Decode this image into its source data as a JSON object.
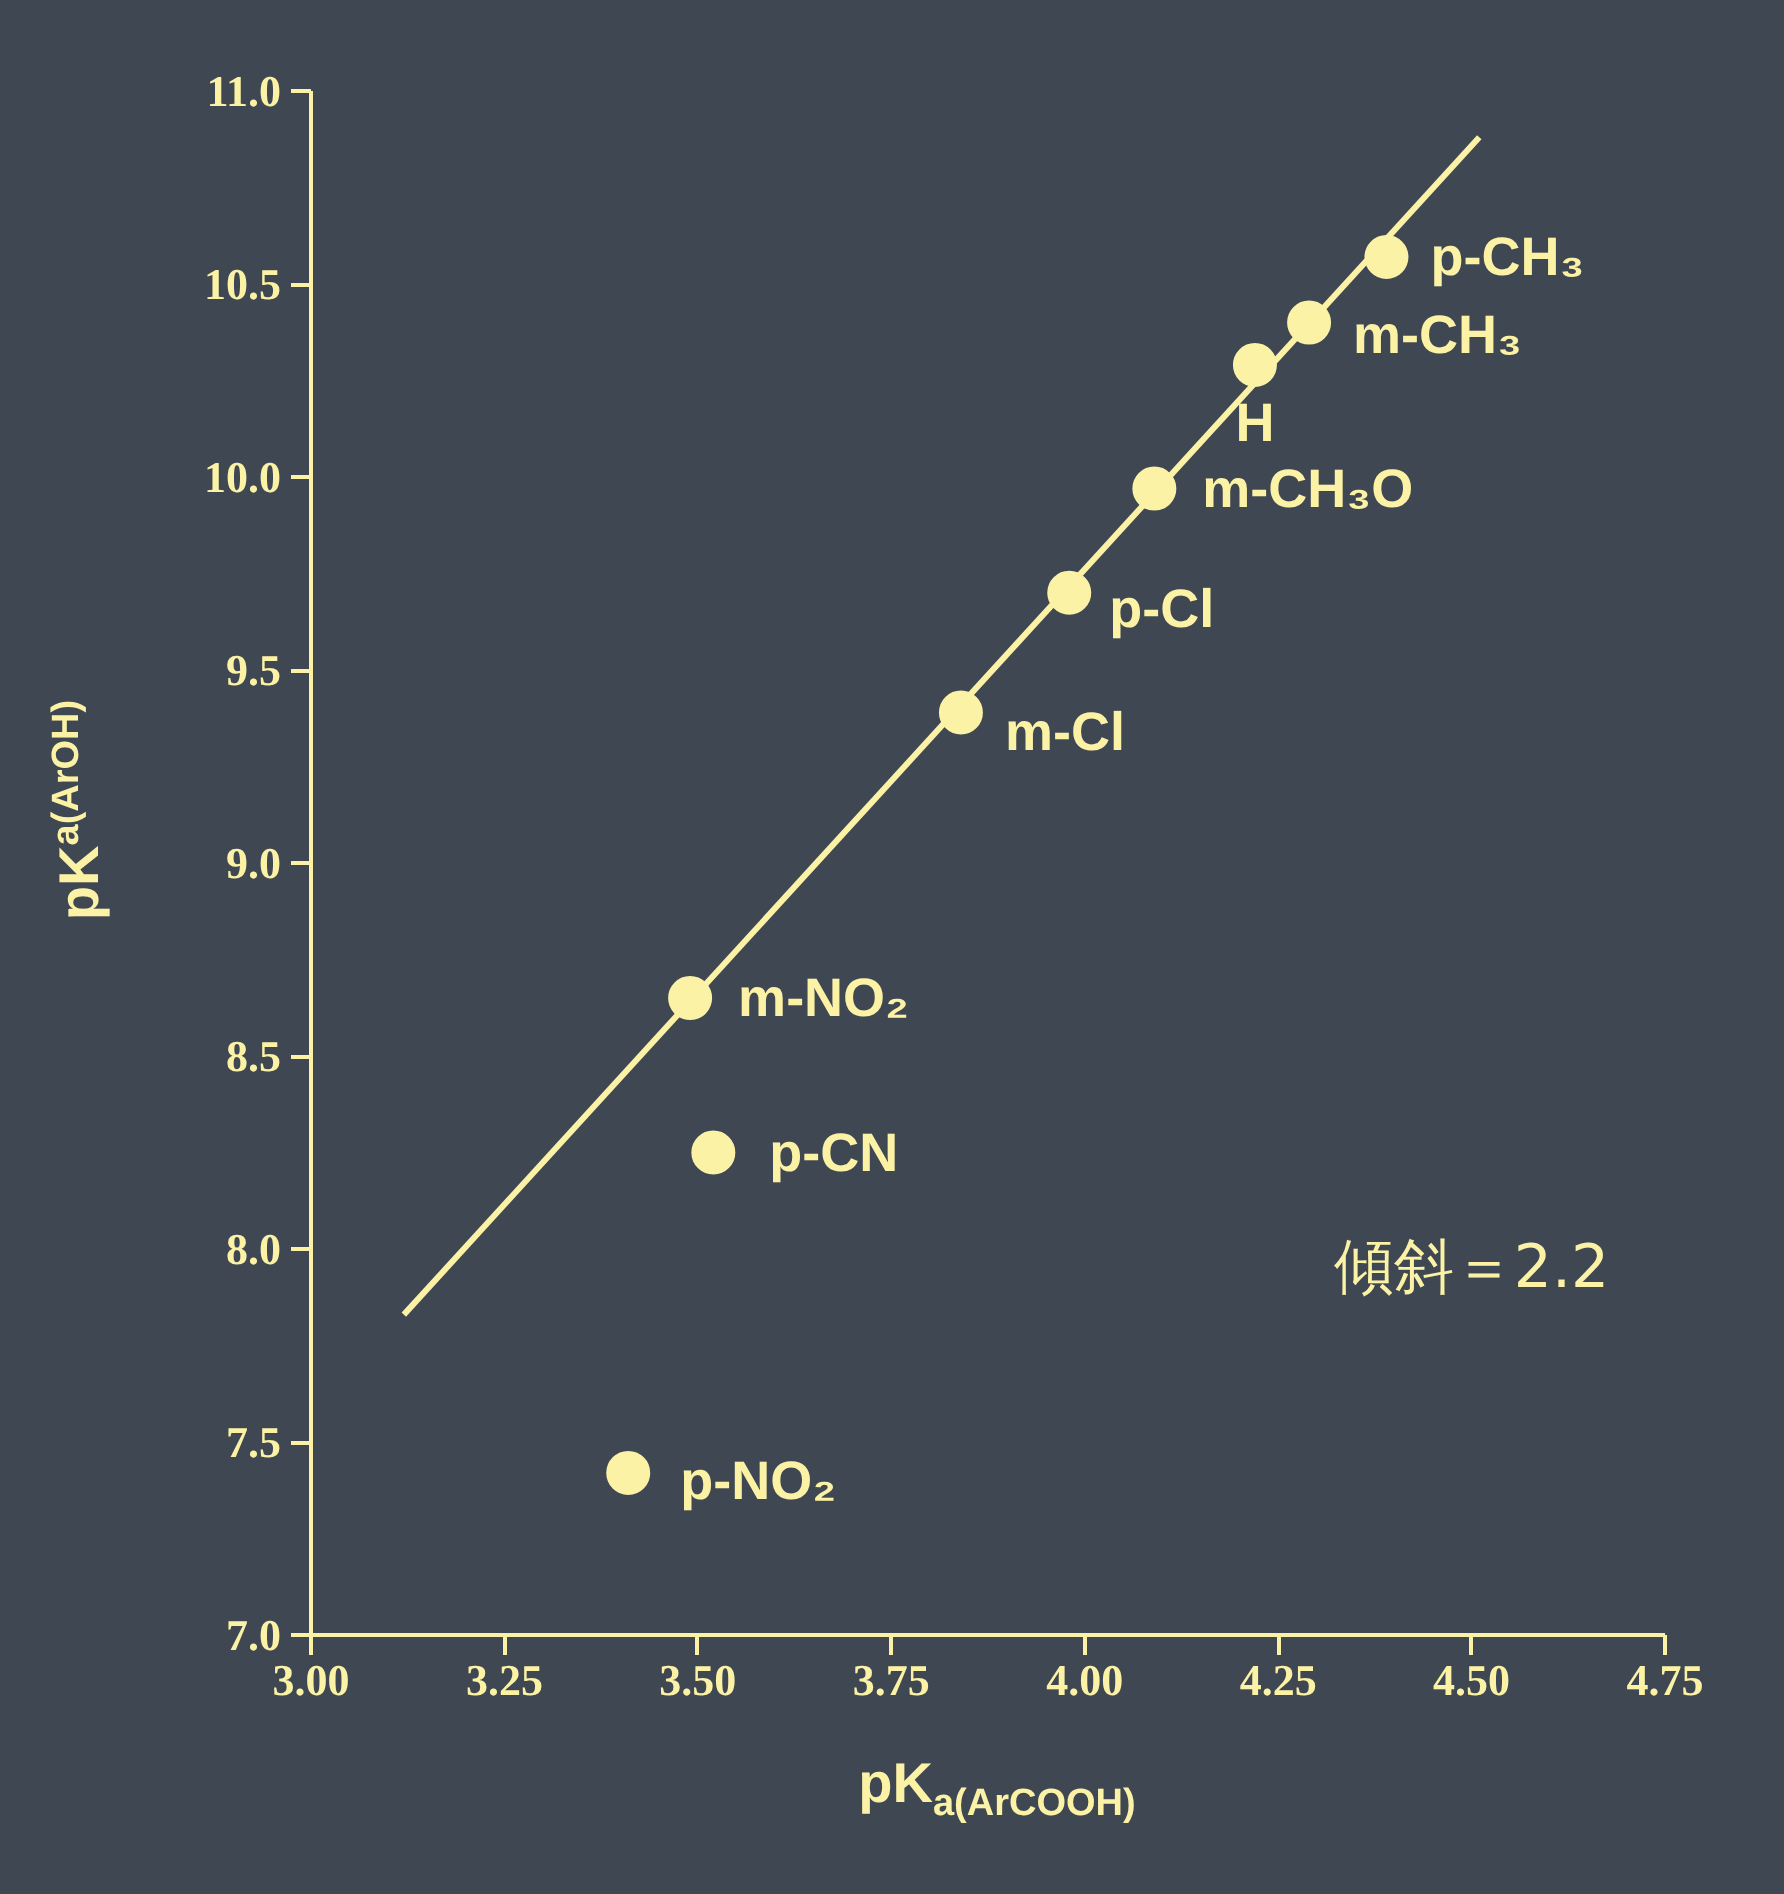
{
  "chart_data": {
    "type": "scatter",
    "xlabel": "pK$_{a(ArCOOH)}$",
    "ylabel": "pK$_{a(ArOH)}$",
    "xlim": [
      3.0,
      4.75
    ],
    "ylim": [
      7.0,
      11.0
    ],
    "xticks": [
      {
        "value": 3.0,
        "label": "3.00"
      },
      {
        "value": 3.25,
        "label": "3.25"
      },
      {
        "value": 3.5,
        "label": "3.50"
      },
      {
        "value": 3.75,
        "label": "3.75"
      },
      {
        "value": 4.0,
        "label": "4.00"
      },
      {
        "value": 4.25,
        "label": "4.25"
      },
      {
        "value": 4.5,
        "label": "4.50"
      },
      {
        "value": 4.75,
        "label": "4.75"
      }
    ],
    "yticks": [
      {
        "value": 7.0,
        "label": "7.0"
      },
      {
        "value": 7.5,
        "label": "7.5"
      },
      {
        "value": 8.0,
        "label": "8.0"
      },
      {
        "value": 8.5,
        "label": "8.5"
      },
      {
        "value": 9.0,
        "label": "9.0"
      },
      {
        "value": 9.5,
        "label": "9.5"
      },
      {
        "value": 10.0,
        "label": "10.0"
      },
      {
        "value": 10.5,
        "label": "10.5"
      },
      {
        "value": 11.0,
        "label": "11.0"
      }
    ],
    "grid": false,
    "series": [
      {
        "type": "scatter",
        "marker": "circle",
        "color": "#fbf2a6",
        "x": [
          4.39,
          4.29,
          4.22,
          4.09,
          3.98,
          3.84,
          3.49,
          3.52,
          3.41
        ],
        "values": [
          10.57,
          10.4,
          10.29,
          9.97,
          9.7,
          9.39,
          8.65,
          8.25,
          7.42
        ]
      },
      {
        "type": "line",
        "color": "#fbf2a6",
        "x": [
          3.12,
          4.51
        ],
        "values": [
          7.83,
          10.88
        ]
      }
    ],
    "annotations": [
      {
        "text": "p-CH₃",
        "x": 4.39,
        "y": 10.57
      },
      {
        "text": "m-CH₃",
        "x": 4.29,
        "y": 10.4
      },
      {
        "text": "H",
        "x": 4.22,
        "y": 10.29
      },
      {
        "text": "m-CH₃O",
        "x": 4.09,
        "y": 9.97
      },
      {
        "text": "p-Cl",
        "x": 3.98,
        "y": 9.7
      },
      {
        "text": "m-Cl",
        "x": 3.84,
        "y": 9.39
      },
      {
        "text": "m-NO₂",
        "x": 3.49,
        "y": 8.65
      },
      {
        "text": "p-CN",
        "x": 3.52,
        "y": 8.25
      },
      {
        "text": "p-NO₂",
        "x": 3.41,
        "y": 7.42
      },
      "傾斜＝2.2"
    ]
  }
}
